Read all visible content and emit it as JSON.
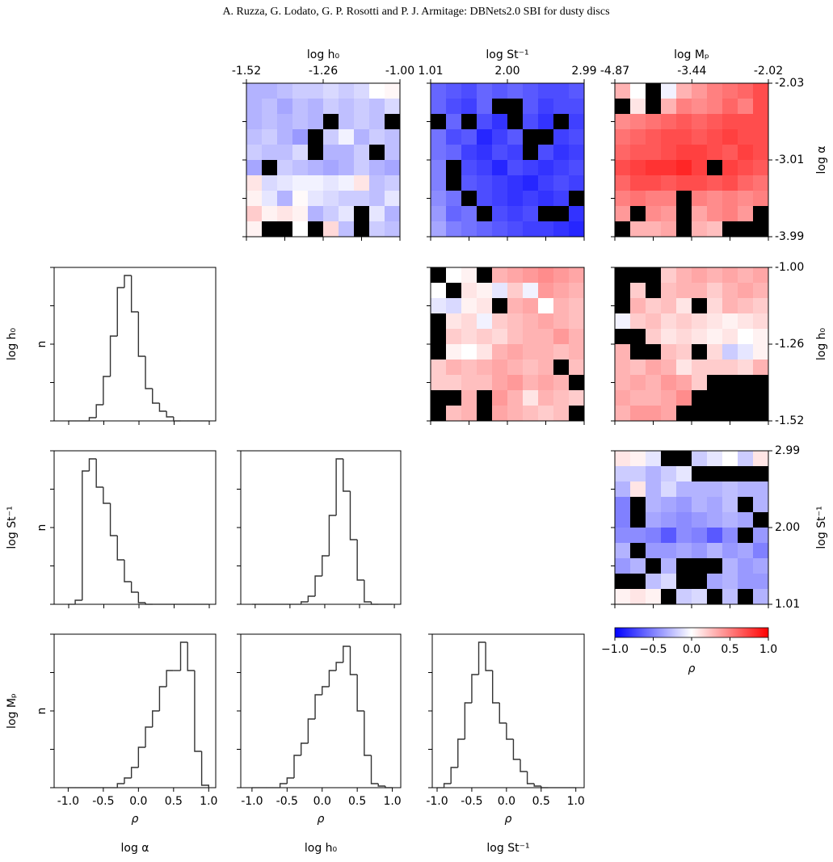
{
  "header": "A. Ruzza, G. Lodato, G. P. Rosotti and P. J. Armitage: DBNets2.0 SBI for dusty discs",
  "figure_labels": {
    "row_labels": [
      "log h₀",
      "log St⁻¹",
      "log Mₚ"
    ],
    "col_labels": [
      "log α",
      "log h₀",
      "log St⁻¹"
    ]
  },
  "chart_data": [
    {
      "type": "heatmap",
      "xlabel": "log h₀",
      "xlim": [
        -1.52,
        -1.0
      ],
      "xticks": [
        -1.52,
        -1.26,
        {
          "value": -1.0,
          "label": "-1.00"
        }
      ],
      "ylim": [
        -3.99,
        -2.03
      ],
      "values": [
        [
          -0.3,
          -0.3,
          -0.25,
          -0.2,
          -0.2,
          -0.15,
          -0.2,
          -0.15,
          0.0,
          0.03
        ],
        [
          -0.3,
          -0.25,
          -0.35,
          -0.25,
          -0.3,
          -0.2,
          -0.25,
          -0.2,
          -0.25,
          -0.15
        ],
        [
          -0.3,
          -0.25,
          -0.3,
          -0.25,
          -0.3,
          null,
          -0.25,
          -0.2,
          -0.25,
          null
        ],
        [
          -0.25,
          -0.2,
          -0.3,
          -0.4,
          null,
          -0.2,
          -0.05,
          -0.3,
          -0.2,
          -0.25
        ],
        [
          -0.2,
          -0.25,
          -0.25,
          -0.15,
          null,
          -0.3,
          -0.3,
          -0.2,
          null,
          -0.25
        ],
        [
          -0.35,
          null,
          -0.2,
          -0.25,
          -0.3,
          -0.35,
          -0.3,
          -0.2,
          -0.3,
          -0.35
        ],
        [
          0.1,
          -0.15,
          -0.1,
          -0.05,
          -0.05,
          -0.1,
          -0.05,
          0.1,
          -0.25,
          -0.2
        ],
        [
          0.05,
          -0.1,
          -0.3,
          0.02,
          -0.1,
          -0.15,
          -0.2,
          -0.2,
          -0.25,
          -0.1
        ],
        [
          0.2,
          0.05,
          0.1,
          0.05,
          -0.3,
          -0.2,
          -0.1,
          null,
          -0.1,
          -0.3
        ],
        [
          0.05,
          null,
          null,
          0.0,
          null,
          0.15,
          -0.25,
          null,
          -0.2,
          -0.25
        ]
      ]
    },
    {
      "type": "heatmap",
      "xlabel": "log St⁻¹",
      "xlim": [
        1.01,
        2.99
      ],
      "xticks": [
        1.01,
        {
          "value": 2.0,
          "label": "2.00"
        },
        2.99
      ],
      "ylim": [
        -3.99,
        -2.03
      ],
      "values": [
        [
          -0.6,
          -0.65,
          -0.7,
          -0.6,
          -0.65,
          -0.6,
          -0.65,
          -0.7,
          -0.7,
          -0.65
        ],
        [
          -0.6,
          -0.7,
          -0.75,
          -0.6,
          null,
          null,
          -0.65,
          -0.75,
          -0.7,
          -0.7
        ],
        [
          null,
          -0.6,
          null,
          -0.7,
          -0.8,
          null,
          -0.7,
          -0.8,
          null,
          -0.75
        ],
        [
          -0.55,
          -0.7,
          -0.65,
          -0.85,
          -0.75,
          -0.65,
          null,
          null,
          -0.75,
          -0.7
        ],
        [
          -0.55,
          -0.6,
          -0.75,
          -0.8,
          -0.7,
          -0.75,
          null,
          -0.7,
          -0.8,
          -0.75
        ],
        [
          -0.5,
          null,
          -0.7,
          -0.75,
          -0.85,
          -0.7,
          -0.75,
          -0.8,
          -0.75,
          -0.7
        ],
        [
          -0.5,
          null,
          -0.65,
          -0.7,
          -0.75,
          -0.8,
          -0.85,
          -0.75,
          -0.7,
          -0.75
        ],
        [
          -0.45,
          -0.55,
          null,
          -0.7,
          -0.75,
          -0.8,
          -0.75,
          -0.8,
          -0.75,
          null
        ],
        [
          -0.4,
          -0.6,
          -0.55,
          null,
          -0.7,
          -0.75,
          -0.7,
          null,
          null,
          -0.8
        ],
        [
          -0.35,
          -0.5,
          -0.55,
          -0.6,
          -0.65,
          -0.7,
          -0.75,
          -0.75,
          -0.8,
          -0.85
        ]
      ]
    },
    {
      "type": "heatmap",
      "xlabel": "log Mₚ",
      "xlim": [
        -4.87,
        -2.02
      ],
      "xticks": [
        -4.87,
        -3.44,
        -2.02
      ],
      "ylabel": "log α",
      "ylim": [
        -3.99,
        -2.03
      ],
      "yticks": [
        -3.99,
        -3.01,
        -2.03
      ],
      "values": [
        [
          0.3,
          0.0,
          null,
          -0.05,
          0.3,
          0.4,
          0.5,
          0.55,
          0.6,
          0.7
        ],
        [
          null,
          0.1,
          null,
          0.3,
          0.5,
          0.45,
          0.5,
          0.6,
          0.5,
          0.7
        ],
        [
          0.45,
          0.5,
          0.55,
          0.6,
          0.65,
          0.6,
          0.65,
          0.7,
          0.7,
          0.7
        ],
        [
          0.55,
          0.6,
          0.65,
          0.7,
          0.7,
          0.65,
          0.7,
          0.75,
          0.7,
          0.7
        ],
        [
          0.6,
          0.65,
          0.65,
          0.7,
          0.75,
          0.75,
          0.7,
          0.65,
          0.75,
          0.7
        ],
        [
          0.7,
          0.75,
          0.8,
          0.8,
          0.85,
          0.75,
          null,
          0.75,
          0.7,
          0.65
        ],
        [
          0.6,
          0.7,
          0.7,
          0.65,
          0.7,
          0.7,
          0.65,
          0.7,
          0.6,
          0.55
        ],
        [
          0.5,
          0.55,
          0.5,
          0.5,
          null,
          0.5,
          0.45,
          0.5,
          0.45,
          0.5
        ],
        [
          0.4,
          null,
          0.45,
          0.4,
          null,
          0.35,
          0.45,
          0.5,
          0.4,
          null
        ],
        [
          null,
          0.3,
          0.3,
          0.35,
          null,
          0.3,
          0.25,
          null,
          null,
          null
        ]
      ]
    },
    {
      "type": "heatmap",
      "xlim": [
        1.01,
        2.99
      ],
      "ylim": [
        -1.52,
        -1.0
      ],
      "values": [
        [
          null,
          0.0,
          0.05,
          null,
          0.3,
          0.35,
          0.4,
          0.45,
          0.4,
          0.35
        ],
        [
          0.0,
          null,
          0.1,
          0.05,
          -0.1,
          0.2,
          -0.05,
          0.4,
          0.35,
          0.3
        ],
        [
          -0.1,
          -0.15,
          0.05,
          0.1,
          null,
          0.3,
          0.35,
          0.0,
          0.3,
          0.25
        ],
        [
          null,
          0.1,
          0.15,
          -0.05,
          0.2,
          0.25,
          0.3,
          0.35,
          0.3,
          0.25
        ],
        [
          null,
          0.2,
          0.15,
          0.2,
          0.15,
          0.25,
          0.3,
          0.3,
          0.4,
          0.3
        ],
        [
          null,
          0.05,
          0.0,
          0.1,
          0.3,
          0.35,
          0.3,
          0.3,
          0.25,
          0.3
        ],
        [
          0.2,
          0.3,
          0.25,
          0.3,
          0.35,
          0.3,
          0.25,
          0.3,
          null,
          0.25
        ],
        [
          0.2,
          0.2,
          0.25,
          0.25,
          0.35,
          0.4,
          0.3,
          0.35,
          0.3,
          null
        ],
        [
          null,
          null,
          0.3,
          null,
          0.4,
          0.3,
          0.1,
          0.3,
          0.25,
          0.2
        ],
        [
          null,
          0.25,
          0.3,
          null,
          0.35,
          0.3,
          0.25,
          0.2,
          0.25,
          null
        ]
      ]
    },
    {
      "type": "heatmap",
      "xlim": [
        -4.87,
        -2.02
      ],
      "ylabel": "log h₀",
      "ylim": [
        -1.52,
        -1.0
      ],
      "yticks": [
        -1.52,
        -1.26,
        {
          "value": -1.0,
          "label": "-1.00"
        }
      ],
      "values": [
        [
          null,
          null,
          null,
          0.2,
          0.3,
          0.35,
          0.3,
          0.35,
          0.3,
          0.35
        ],
        [
          null,
          0.2,
          null,
          0.25,
          0.3,
          0.3,
          0.2,
          0.3,
          0.35,
          0.3
        ],
        [
          null,
          0.3,
          0.2,
          0.25,
          0.1,
          null,
          0.15,
          0.3,
          0.25,
          0.2
        ],
        [
          -0.05,
          0.2,
          0.25,
          0.15,
          0.2,
          0.15,
          0.1,
          0.05,
          0.1,
          0.15
        ],
        [
          null,
          null,
          0.2,
          0.1,
          0.15,
          0.1,
          0.05,
          0.1,
          0.0,
          0.05
        ],
        [
          0.3,
          null,
          null,
          0.25,
          0.2,
          null,
          0.15,
          -0.2,
          -0.1,
          0.05
        ],
        [
          0.3,
          0.25,
          0.35,
          0.3,
          0.1,
          0.2,
          0.2,
          0.2,
          0.15,
          0.3
        ],
        [
          0.3,
          0.35,
          0.3,
          0.4,
          0.35,
          0.2,
          null,
          null,
          null,
          null
        ],
        [
          0.35,
          0.3,
          0.3,
          0.35,
          0.45,
          null,
          null,
          null,
          null,
          null
        ],
        [
          0.3,
          0.4,
          0.4,
          0.35,
          null,
          null,
          null,
          null,
          null,
          null
        ]
      ]
    },
    {
      "type": "heatmap",
      "xlim": [
        -4.87,
        -2.02
      ],
      "ylabel": "log St⁻¹",
      "ylim": [
        1.01,
        2.99
      ],
      "yticks": [
        1.01,
        {
          "value": 2.0,
          "label": "2.00"
        },
        2.99
      ],
      "values": [
        [
          0.1,
          0.05,
          -0.1,
          null,
          null,
          -0.2,
          -0.1,
          0.0,
          -0.2,
          0.1
        ],
        [
          -0.2,
          -0.2,
          -0.3,
          -0.2,
          -0.1,
          null,
          null,
          null,
          null,
          null
        ],
        [
          -0.3,
          0.1,
          -0.3,
          -0.15,
          -0.3,
          -0.3,
          -0.3,
          -0.25,
          -0.3,
          -0.3
        ],
        [
          -0.5,
          null,
          -0.3,
          -0.35,
          -0.4,
          -0.3,
          -0.35,
          -0.25,
          null,
          -0.3
        ],
        [
          -0.5,
          null,
          -0.35,
          -0.4,
          -0.45,
          -0.4,
          -0.35,
          -0.3,
          -0.35,
          null
        ],
        [
          -0.45,
          -0.45,
          -0.5,
          -0.65,
          -0.45,
          -0.5,
          -0.65,
          -0.45,
          null,
          -0.4
        ],
        [
          -0.3,
          null,
          -0.4,
          -0.4,
          -0.35,
          -0.4,
          -0.3,
          -0.4,
          -0.35,
          -0.5
        ],
        [
          -0.4,
          -0.3,
          null,
          -0.3,
          null,
          null,
          null,
          -0.3,
          -0.4,
          -0.35
        ],
        [
          null,
          null,
          -0.25,
          -0.15,
          null,
          null,
          -0.35,
          -0.3,
          -0.4,
          -0.4
        ],
        [
          0.05,
          0.1,
          0.05,
          null,
          -0.2,
          -0.15,
          null,
          -0.25,
          null,
          -0.3
        ]
      ]
    },
    {
      "type": "histogram",
      "ylabel": "n",
      "xlim": [
        -1.2,
        1.1
      ],
      "ylim": [
        0,
        190
      ],
      "color": "#333333",
      "bins": [
        -1.0,
        -0.9,
        -0.8,
        -0.7,
        -0.6,
        -0.5,
        -0.4,
        -0.3,
        -0.2,
        -0.1,
        0.0,
        0.1,
        0.2,
        0.3,
        0.4,
        0.5,
        0.6,
        0.7,
        0.8,
        0.9,
        1.0
      ],
      "counts": [
        0,
        0,
        0,
        4,
        20,
        55,
        105,
        165,
        180,
        135,
        80,
        40,
        22,
        12,
        5,
        0,
        0,
        0,
        0,
        0
      ]
    },
    {
      "type": "histogram",
      "ylabel": "n",
      "xlim": [
        -1.2,
        1.1
      ],
      "ylim": [
        0,
        190
      ],
      "color": "#333333",
      "bins": [
        -1.0,
        -0.9,
        -0.8,
        -0.7,
        -0.6,
        -0.5,
        -0.4,
        -0.3,
        -0.2,
        -0.1,
        0.0,
        0.1,
        0.2,
        0.3,
        0.4,
        0.5,
        0.6,
        0.7,
        0.8,
        0.9,
        1.0
      ],
      "counts": [
        0,
        5,
        165,
        180,
        145,
        125,
        85,
        55,
        28,
        15,
        2,
        0,
        0,
        0,
        0,
        0,
        0,
        0,
        0,
        0
      ]
    },
    {
      "type": "histogram",
      "ylabel": "n",
      "xlabel": "ρ",
      "xlim": [
        -1.2,
        1.1
      ],
      "ylim": [
        0,
        190
      ],
      "color": "#333333",
      "xticks": [
        {
          "value": -1.0,
          "label": "-1.0"
        },
        -0.5,
        {
          "value": 0.0,
          "label": "0.0"
        },
        0.5,
        {
          "value": 1.0,
          "label": "1.0"
        }
      ],
      "bins": [
        -1.0,
        -0.9,
        -0.8,
        -0.7,
        -0.6,
        -0.5,
        -0.4,
        -0.3,
        -0.2,
        -0.1,
        0.0,
        0.1,
        0.2,
        0.3,
        0.4,
        0.5,
        0.6,
        0.7,
        0.8,
        0.9,
        1.0
      ],
      "counts": [
        0,
        0,
        0,
        0,
        0,
        0,
        0,
        5,
        12,
        25,
        50,
        75,
        95,
        125,
        145,
        145,
        180,
        145,
        45,
        3
      ]
    },
    {
      "type": "histogram",
      "xlim": [
        -1.16,
        1.12
      ],
      "ylim": [
        0,
        190
      ],
      "color": "#333333",
      "bins": [
        -1.0,
        -0.9,
        -0.8,
        -0.7,
        -0.6,
        -0.5,
        -0.4,
        -0.3,
        -0.2,
        -0.1,
        0.0,
        0.1,
        0.2,
        0.3,
        0.4,
        0.5,
        0.6,
        0.7,
        0.8,
        0.9,
        1.0
      ],
      "counts": [
        0,
        0,
        0,
        0,
        0,
        0,
        0,
        3,
        10,
        35,
        60,
        110,
        180,
        140,
        80,
        30,
        3,
        0,
        0,
        0
      ]
    },
    {
      "type": "histogram",
      "xlabel": "ρ",
      "xlim": [
        -1.16,
        1.12
      ],
      "ylim": [
        0,
        190
      ],
      "color": "#333333",
      "xticks": [
        {
          "value": -1.0,
          "label": "-1.0"
        },
        -0.5,
        {
          "value": 0.0,
          "label": "0.0"
        },
        0.5,
        {
          "value": 1.0,
          "label": "1.0"
        }
      ],
      "bins": [
        -1.0,
        -0.9,
        -0.8,
        -0.7,
        -0.6,
        -0.5,
        -0.4,
        -0.3,
        -0.2,
        -0.1,
        0.0,
        0.1,
        0.2,
        0.3,
        0.4,
        0.5,
        0.6,
        0.7,
        0.8,
        0.9,
        1.0
      ],
      "counts": [
        0,
        0,
        0,
        0,
        5,
        12,
        40,
        55,
        85,
        115,
        125,
        145,
        155,
        175,
        140,
        95,
        40,
        5,
        2,
        0
      ]
    },
    {
      "type": "histogram",
      "xlabel": "ρ",
      "xlim": [
        -1.07,
        1.12
      ],
      "ylim": [
        0,
        190
      ],
      "color": "#333333",
      "xticks": [
        {
          "value": -1.0,
          "label": "-1.0"
        },
        -0.5,
        {
          "value": 0.0,
          "label": "0.0"
        },
        0.5,
        {
          "value": 1.0,
          "label": "1.0"
        }
      ],
      "bins": [
        -1.0,
        -0.9,
        -0.8,
        -0.7,
        -0.6,
        -0.5,
        -0.4,
        -0.3,
        -0.2,
        -0.1,
        0.0,
        0.1,
        0.2,
        0.3,
        0.4,
        0.5,
        0.6,
        0.7,
        0.8,
        0.9,
        1.0
      ],
      "counts": [
        0,
        5,
        25,
        60,
        105,
        140,
        180,
        145,
        105,
        80,
        60,
        35,
        20,
        5,
        2,
        0,
        0,
        0,
        0,
        0
      ]
    },
    {
      "type": "colorbar",
      "xlabel": "ρ",
      "xlim": [
        -1.0,
        1.0
      ],
      "colors": [
        "#0000ff",
        "#ffffff",
        "#ff0000"
      ],
      "xticks": [
        {
          "value": -1.0,
          "label": "−1.0"
        },
        {
          "value": -0.5,
          "label": "−0.5"
        },
        {
          "value": 0.0,
          "label": "0.0"
        },
        0.5,
        {
          "value": 1.0,
          "label": "1.0"
        }
      ]
    }
  ]
}
